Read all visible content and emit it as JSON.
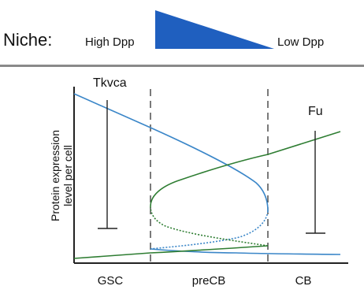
{
  "header": {
    "niche_label": "Niche:",
    "high_label": "High Dpp",
    "low_label": "Low Dpp",
    "gradient_color": "#1f5fbf"
  },
  "plot": {
    "ylabel_line1": "Protein expression",
    "ylabel_line2": "level per cell",
    "stages": [
      "GSC",
      "preCB",
      "CB"
    ],
    "tkvca_label": "Tkvca",
    "fu_label": "Fu",
    "colors": {
      "tkvca_curve": "#3a86c8",
      "fu_curve": "#2e7d32",
      "axis": "#222222"
    }
  }
}
